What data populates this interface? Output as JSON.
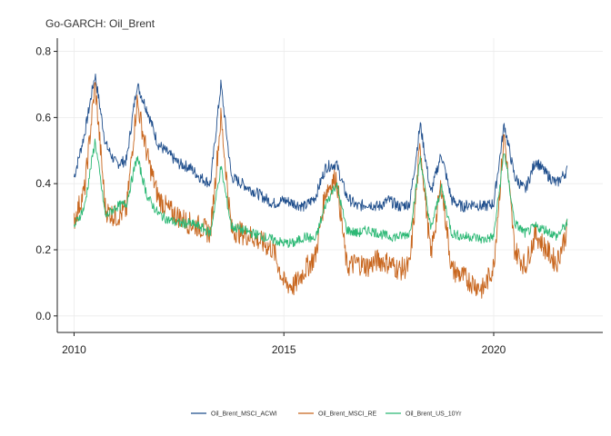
{
  "chart_data": {
    "type": "line",
    "title": "Go-GARCH: Oil_Brent",
    "xlabel": "",
    "ylabel": "",
    "xlim": [
      2009.6,
      2022.6
    ],
    "ylim": [
      -0.05,
      0.84
    ],
    "x_ticks": [
      2010,
      2015,
      2020
    ],
    "y_ticks": [
      0.0,
      0.2,
      0.4,
      0.6,
      0.8
    ],
    "y_tick_labels": [
      "0.0",
      "0.2",
      "0.4",
      "0.6",
      "0.8"
    ],
    "grid": true,
    "legend_position": "bottom",
    "x": [
      2010.0,
      2010.25,
      2010.5,
      2010.75,
      2011.0,
      2011.25,
      2011.5,
      2011.75,
      2012.0,
      2012.25,
      2012.5,
      2012.75,
      2013.0,
      2013.25,
      2013.5,
      2013.75,
      2014.0,
      2014.25,
      2014.5,
      2014.75,
      2015.0,
      2015.25,
      2015.5,
      2015.75,
      2016.0,
      2016.25,
      2016.5,
      2016.75,
      2017.0,
      2017.25,
      2017.5,
      2017.75,
      2018.0,
      2018.25,
      2018.5,
      2018.75,
      2019.0,
      2019.25,
      2019.5,
      2019.75,
      2020.0,
      2020.25,
      2020.5,
      2020.75,
      2021.0,
      2021.25,
      2021.5,
      2021.75
    ],
    "series": [
      {
        "name": "Oil_Brent_MSCI_ACWI",
        "color": "#1f4e8c",
        "values": [
          0.42,
          0.55,
          0.73,
          0.52,
          0.46,
          0.47,
          0.7,
          0.62,
          0.52,
          0.49,
          0.46,
          0.45,
          0.42,
          0.4,
          0.7,
          0.42,
          0.4,
          0.38,
          0.36,
          0.34,
          0.35,
          0.34,
          0.33,
          0.36,
          0.45,
          0.46,
          0.36,
          0.33,
          0.34,
          0.33,
          0.35,
          0.33,
          0.34,
          0.58,
          0.37,
          0.49,
          0.35,
          0.33,
          0.34,
          0.33,
          0.34,
          0.58,
          0.42,
          0.38,
          0.47,
          0.43,
          0.4,
          0.44
        ]
      },
      {
        "name": "Oil_Brent_MSCI_RE",
        "color": "#c8661e",
        "values": [
          0.29,
          0.38,
          0.7,
          0.32,
          0.3,
          0.32,
          0.65,
          0.48,
          0.36,
          0.32,
          0.3,
          0.28,
          0.27,
          0.25,
          0.6,
          0.26,
          0.25,
          0.24,
          0.22,
          0.2,
          0.1,
          0.09,
          0.14,
          0.18,
          0.38,
          0.42,
          0.15,
          0.16,
          0.15,
          0.17,
          0.16,
          0.14,
          0.15,
          0.52,
          0.18,
          0.4,
          0.14,
          0.12,
          0.1,
          0.08,
          0.15,
          0.55,
          0.2,
          0.15,
          0.25,
          0.2,
          0.16,
          0.26
        ]
      },
      {
        "name": "Oil_Brent_US_10Yr",
        "color": "#2bb874",
        "values": [
          0.27,
          0.33,
          0.53,
          0.3,
          0.33,
          0.34,
          0.48,
          0.36,
          0.31,
          0.29,
          0.28,
          0.28,
          0.27,
          0.25,
          0.45,
          0.27,
          0.26,
          0.25,
          0.24,
          0.23,
          0.22,
          0.22,
          0.24,
          0.23,
          0.34,
          0.4,
          0.26,
          0.25,
          0.26,
          0.25,
          0.24,
          0.24,
          0.25,
          0.48,
          0.26,
          0.39,
          0.25,
          0.24,
          0.24,
          0.23,
          0.24,
          0.5,
          0.28,
          0.25,
          0.27,
          0.26,
          0.24,
          0.28
        ]
      }
    ]
  }
}
